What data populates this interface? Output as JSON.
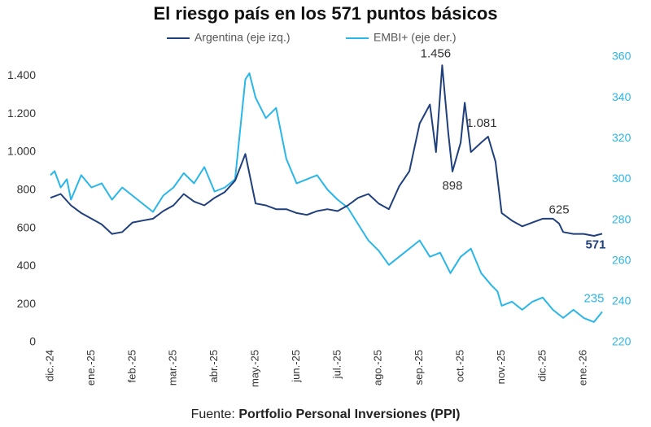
{
  "chart_data": {
    "type": "line",
    "title": "El riesgo país en los 571 puntos básicos",
    "source_label": "Fuente:",
    "source": "Portfolio Personal Inversiones (PPI)",
    "xlim": [
      -0.1,
      13.55
    ],
    "xticks": [
      {
        "value": 0,
        "label": "dic.-24"
      },
      {
        "value": 1,
        "label": "ene.-25"
      },
      {
        "value": 2,
        "label": "feb.-25"
      },
      {
        "value": 3,
        "label": "mar.-25"
      },
      {
        "value": 4,
        "label": "abr.-25"
      },
      {
        "value": 5,
        "label": "may.-25"
      },
      {
        "value": 6,
        "label": "jun.-25"
      },
      {
        "value": 7,
        "label": "jul.-25"
      },
      {
        "value": 8,
        "label": "ago.-25"
      },
      {
        "value": 9,
        "label": "sep.-25"
      },
      {
        "value": 10,
        "label": "oct.-25"
      },
      {
        "value": 11,
        "label": "nov.-25"
      },
      {
        "value": 12,
        "label": "dic.-25"
      },
      {
        "value": 13,
        "label": "ene.-26"
      }
    ],
    "ylim": [
      0,
      1500
    ],
    "yticks": [
      0,
      200,
      400,
      600,
      800,
      {
        "value": 1000,
        "label": "1.000"
      },
      {
        "value": 1200,
        "label": "1.200"
      },
      {
        "value": 1400,
        "label": "1.400"
      }
    ],
    "y2lim": [
      220,
      360
    ],
    "y2ticks": [
      220,
      240,
      260,
      280,
      300,
      320,
      340,
      360
    ],
    "y2_color": "#29b6e8",
    "series": [
      {
        "name": "Argentina (eje izq.)",
        "color": "#1f3f7d",
        "x": [
          0,
          0.25,
          0.5,
          0.75,
          1,
          1.25,
          1.5,
          1.75,
          2,
          2.25,
          2.5,
          2.75,
          3,
          3.25,
          3.5,
          3.75,
          4,
          4.25,
          4.5,
          4.75,
          5,
          5.25,
          5.5,
          5.75,
          6,
          6.25,
          6.5,
          6.75,
          7,
          7.25,
          7.5,
          7.75,
          8,
          8.25,
          8.5,
          8.75,
          9,
          9.25,
          9.4,
          9.55,
          9.7,
          9.8,
          10,
          10.1,
          10.25,
          10.5,
          10.67,
          10.85,
          11,
          11.25,
          11.5,
          11.75,
          12,
          12.25,
          12.4,
          12.5,
          12.75,
          13,
          13.25,
          13.45
        ],
        "values": [
          760,
          780,
          720,
          680,
          650,
          620,
          570,
          580,
          630,
          640,
          650,
          690,
          720,
          780,
          740,
          720,
          760,
          790,
          850,
          990,
          730,
          720,
          700,
          700,
          680,
          670,
          690,
          700,
          690,
          720,
          760,
          780,
          730,
          700,
          820,
          900,
          1150,
          1250,
          1000,
          1456,
          1100,
          898,
          1050,
          1260,
          1000,
          1050,
          1081,
          950,
          680,
          640,
          610,
          630,
          650,
          650,
          625,
          580,
          570,
          570,
          560,
          571
        ]
      },
      {
        "name": "EMBI+ (eje der.)",
        "color": "#29b6e8",
        "axis": "y2",
        "x": [
          0,
          0.1,
          0.25,
          0.4,
          0.5,
          0.75,
          1,
          1.25,
          1.5,
          1.75,
          2,
          2.25,
          2.5,
          2.75,
          3,
          3.25,
          3.5,
          3.75,
          4,
          4.25,
          4.5,
          4.75,
          4.85,
          5,
          5.25,
          5.5,
          5.75,
          6,
          6.25,
          6.5,
          6.75,
          7,
          7.25,
          7.5,
          7.75,
          8,
          8.25,
          8.5,
          8.75,
          9,
          9.25,
          9.5,
          9.75,
          10,
          10.25,
          10.5,
          10.75,
          10.9,
          11,
          11.25,
          11.5,
          11.75,
          12,
          12.25,
          12.5,
          12.75,
          13,
          13.25,
          13.45
        ],
        "values": [
          302,
          304,
          296,
          300,
          290,
          302,
          296,
          298,
          290,
          296,
          292,
          288,
          284,
          292,
          296,
          303,
          298,
          306,
          294,
          296,
          300,
          349,
          352,
          340,
          330,
          335,
          310,
          298,
          300,
          302,
          295,
          290,
          286,
          278,
          270,
          265,
          258,
          262,
          266,
          270,
          262,
          264,
          254,
          262,
          266,
          254,
          248,
          245,
          238,
          240,
          236,
          240,
          242,
          236,
          232,
          236,
          232,
          230,
          235
        ]
      }
    ],
    "annotations": [
      {
        "text": "1.456",
        "x": 9.55,
        "y": 1456
      },
      {
        "text": "898",
        "x": 9.8,
        "y": 898
      },
      {
        "text": "1.081",
        "x": 10.67,
        "y": 1081
      },
      {
        "text": "625",
        "x": 12.4,
        "y": 625
      },
      {
        "text": "571",
        "x": 13.45,
        "y": 571
      },
      {
        "text": "235",
        "x": 13.45,
        "y": 235,
        "axis": "y2"
      }
    ]
  }
}
